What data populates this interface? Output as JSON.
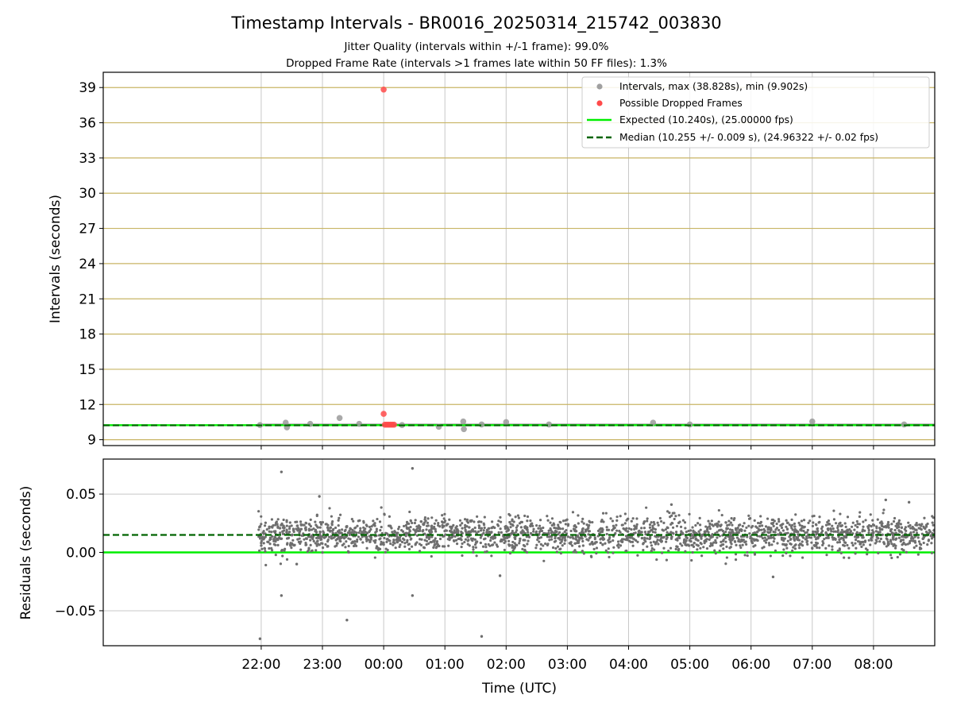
{
  "figure": {
    "title": "Timestamp Intervals - BR0016_20250314_215742_003830",
    "subtitle_1": "Jitter Quality (intervals within +/-1 frame): 99.0%",
    "subtitle_2": "Dropped Frame Rate (intervals >1 frames late within 50 FF files): 1.3%"
  },
  "colors": {
    "intervals": "#8c8c8c",
    "dropped": "#ff4a4a",
    "expected": "#00ee00",
    "median": "#006400",
    "y_grid_top": "#c8b464",
    "grid": "#c8c8c8"
  },
  "chart_data": [
    {
      "type": "scatter",
      "panel": "intervals",
      "xlabel": "",
      "ylabel": "Intervals (seconds)",
      "xlim_hours": [
        -2.58,
        11.0
      ],
      "ylim": [
        8.5,
        40.3
      ],
      "y_ticks": [
        9,
        12,
        15,
        18,
        21,
        24,
        27,
        30,
        33,
        36,
        39
      ],
      "x_ticks": [
        {
          "h": 0,
          "label": "22:00"
        },
        {
          "h": 1,
          "label": "23:00"
        },
        {
          "h": 2,
          "label": "00:00"
        },
        {
          "h": 3,
          "label": "01:00"
        },
        {
          "h": 4,
          "label": "02:00"
        },
        {
          "h": 5,
          "label": "03:00"
        },
        {
          "h": 6,
          "label": "04:00"
        },
        {
          "h": 7,
          "label": "05:00"
        },
        {
          "h": 8,
          "label": "06:00"
        },
        {
          "h": 9,
          "label": "07:00"
        },
        {
          "h": 10,
          "label": "08:00"
        }
      ],
      "grid": true,
      "legend_position": "upper-right",
      "legend": [
        {
          "label": "Intervals, max (38.828s), min (9.902s)",
          "kind": "dot",
          "color": "#a0a0a0"
        },
        {
          "label": "Possible Dropped Frames",
          "kind": "dot",
          "color": "#ff4a4a"
        },
        {
          "label": "Expected (10.240s), (25.00000 fps)",
          "kind": "line",
          "color": "#00ee00"
        },
        {
          "label": "Median (10.255 +/- 0.009 s), (24.96322 +/- 0.02 fps)",
          "kind": "dash",
          "color": "#006400"
        }
      ],
      "expected": 10.24,
      "median": 10.255,
      "band": {
        "x_start": -0.05,
        "x_end": 11.0,
        "y_low": 10.18,
        "y_high": 10.36
      },
      "intervals_points": [
        {
          "x": -0.02,
          "y": 10.25
        },
        {
          "x": 0.4,
          "y": 10.45
        },
        {
          "x": 0.42,
          "y": 10.05
        },
        {
          "x": 0.8,
          "y": 10.35
        },
        {
          "x": 1.28,
          "y": 10.85
        },
        {
          "x": 1.6,
          "y": 10.35
        },
        {
          "x": 2.3,
          "y": 10.25
        },
        {
          "x": 2.9,
          "y": 10.1
        },
        {
          "x": 3.3,
          "y": 10.55
        },
        {
          "x": 3.31,
          "y": 9.9
        },
        {
          "x": 3.6,
          "y": 10.3
        },
        {
          "x": 4.0,
          "y": 10.5
        },
        {
          "x": 4.7,
          "y": 10.3
        },
        {
          "x": 6.4,
          "y": 10.45
        },
        {
          "x": 7.0,
          "y": 10.3
        },
        {
          "x": 9.0,
          "y": 10.55
        },
        {
          "x": 10.5,
          "y": 10.3
        }
      ],
      "dropped_points": [
        {
          "x": 2.0,
          "y": 38.828
        },
        {
          "x": 2.0,
          "y": 11.2
        },
        {
          "x": 2.02,
          "y": 10.28
        },
        {
          "x": 2.05,
          "y": 10.28
        },
        {
          "x": 2.08,
          "y": 10.28
        },
        {
          "x": 2.11,
          "y": 10.28
        },
        {
          "x": 2.14,
          "y": 10.28
        },
        {
          "x": 2.17,
          "y": 10.28
        }
      ]
    },
    {
      "type": "scatter",
      "panel": "residuals",
      "xlabel": "Time (UTC)",
      "ylabel": "Residuals (seconds)",
      "xlim_hours": [
        -2.58,
        11.0
      ],
      "ylim": [
        -0.08,
        0.08
      ],
      "y_ticks": [
        {
          "v": -0.05,
          "label": "−0.05"
        },
        {
          "v": 0.0,
          "label": "0.00"
        },
        {
          "v": 0.05,
          "label": "0.05"
        }
      ],
      "grid": true,
      "expected": 0.0,
      "median": 0.015,
      "scatter_summary": {
        "x_start": -0.05,
        "x_end": 11.0,
        "center": 0.015,
        "spread": 0.012,
        "count": 2400
      },
      "outliers": [
        {
          "x": -0.02,
          "y": -0.074
        },
        {
          "x": 0.33,
          "y": 0.069
        },
        {
          "x": 0.33,
          "y": -0.037
        },
        {
          "x": 0.95,
          "y": 0.048
        },
        {
          "x": 1.4,
          "y": -0.058
        },
        {
          "x": 2.47,
          "y": 0.072
        },
        {
          "x": 2.47,
          "y": -0.037
        },
        {
          "x": 3.6,
          "y": -0.072
        },
        {
          "x": 3.9,
          "y": -0.02
        },
        {
          "x": 0.58,
          "y": -0.01
        },
        {
          "x": 6.7,
          "y": 0.041
        },
        {
          "x": 10.2,
          "y": 0.045
        },
        {
          "x": 10.58,
          "y": 0.043
        },
        {
          "x": 8.36,
          "y": -0.021
        }
      ]
    }
  ]
}
